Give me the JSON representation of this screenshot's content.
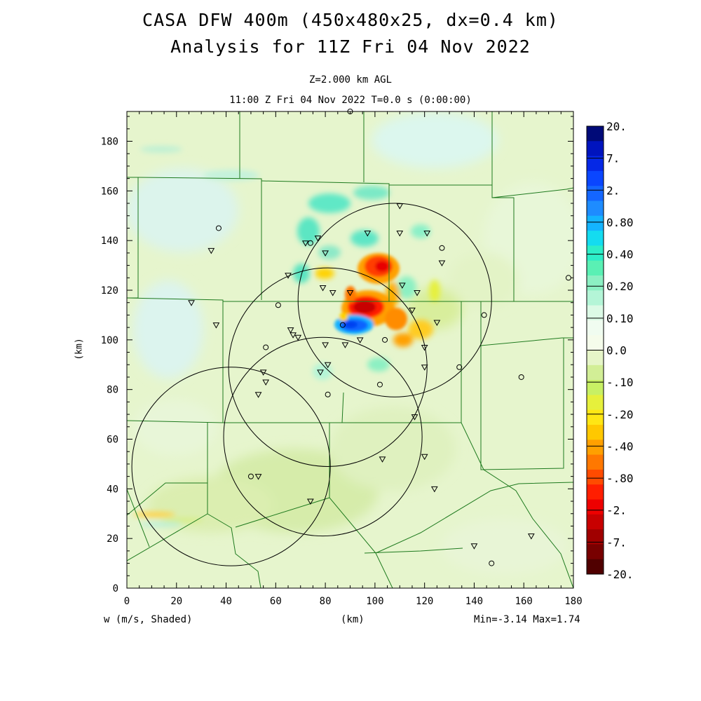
{
  "title": {
    "line1": "CASA DFW 400m (450x480x25, dx=0.4 km)",
    "line2": "Analysis for 11Z Fri 04 Nov 2022"
  },
  "subtitle": {
    "line1": "Z=2.000 km AGL",
    "line2": "11:00 Z Fri 04 Nov 2022    T=0.0 s (0:00:00)"
  },
  "footer": {
    "left": "w (m/s, Shaded)",
    "center": "(km)",
    "right": "Min=-3.14 Max=1.74"
  },
  "axes": {
    "xlabel": "(km)",
    "ylabel": "(km)",
    "xrange": [
      0,
      180
    ],
    "yrange": [
      0,
      192
    ],
    "xticks": [
      "0",
      "20",
      "40",
      "60",
      "80",
      "100",
      "120",
      "140",
      "160",
      "180"
    ],
    "yticks": [
      "0",
      "20",
      "40",
      "60",
      "80",
      "100",
      "120",
      "140",
      "160",
      "180"
    ]
  },
  "colorbar": {
    "labels": [
      "20.",
      "7.",
      "2.",
      "0.80",
      "0.40",
      "0.20",
      "0.10",
      "0.0",
      "-.10",
      "-.20",
      "-.40",
      "-.80",
      "-2.",
      "-7.",
      "-20."
    ],
    "colors": [
      "#000a78",
      "#0014be",
      "#0528e6",
      "#0a46ff",
      "#1466ff",
      "#1e8cff",
      "#14b4ff",
      "#14dcf0",
      "#2deec8",
      "#5af0b4",
      "#8cf0c3",
      "#b4f5d7",
      "#dcfae6",
      "#f0fcf0",
      "#f5fceb",
      "#e6f5c8",
      "#d2ee96",
      "#c8f064",
      "#e6f03c",
      "#ffe614",
      "#ffc800",
      "#ffa000",
      "#ff7800",
      "#ff4b00",
      "#ff1e00",
      "#ee0000",
      "#c80000",
      "#a00000",
      "#780000",
      "#500000"
    ]
  },
  "radars": [
    {
      "cx": 108,
      "cy": 116,
      "r": 39
    },
    {
      "cx": 81,
      "cy": 89,
      "r": 40
    },
    {
      "cx": 42,
      "cy": 49,
      "r": 40
    },
    {
      "cx": 79,
      "cy": 61,
      "r": 40
    }
  ],
  "stations_triangle": [
    [
      110,
      154
    ],
    [
      110,
      143
    ],
    [
      121,
      143
    ],
    [
      127,
      131
    ],
    [
      117,
      119
    ],
    [
      111,
      122
    ],
    [
      115,
      112
    ],
    [
      125,
      107
    ],
    [
      120,
      97
    ],
    [
      120,
      89
    ],
    [
      116,
      69
    ],
    [
      120,
      53
    ],
    [
      124,
      40
    ],
    [
      103,
      52
    ],
    [
      97,
      143
    ],
    [
      80,
      135
    ],
    [
      77,
      141
    ],
    [
      72,
      139
    ],
    [
      65,
      126
    ],
    [
      79,
      121
    ],
    [
      83,
      119
    ],
    [
      90,
      119
    ],
    [
      80,
      98
    ],
    [
      81,
      90
    ],
    [
      78,
      87
    ],
    [
      88,
      98
    ],
    [
      94,
      100
    ],
    [
      66,
      104
    ],
    [
      67,
      102
    ],
    [
      69,
      101
    ],
    [
      55,
      87
    ],
    [
      56,
      83
    ],
    [
      53,
      78
    ],
    [
      34,
      136
    ],
    [
      36,
      106
    ],
    [
      26,
      115
    ],
    [
      53,
      45
    ],
    [
      74,
      35
    ],
    [
      140,
      17
    ],
    [
      163,
      21
    ]
  ],
  "stations_circle": [
    [
      37,
      145
    ],
    [
      61,
      114
    ],
    [
      56,
      97
    ],
    [
      87,
      106
    ],
    [
      104,
      100
    ],
    [
      74,
      139
    ],
    [
      134,
      89
    ],
    [
      144,
      110
    ],
    [
      159,
      85
    ],
    [
      178,
      125
    ],
    [
      127,
      137
    ],
    [
      102,
      82
    ],
    [
      81,
      78
    ],
    [
      50,
      45
    ],
    [
      147,
      10
    ],
    [
      90,
      192
    ]
  ],
  "features": {
    "updraft_core": {
      "x": 95,
      "y": 113,
      "w_min": -3.14
    },
    "downdraft_core": {
      "x": 92,
      "y": 105,
      "w_max": 1.74
    }
  }
}
